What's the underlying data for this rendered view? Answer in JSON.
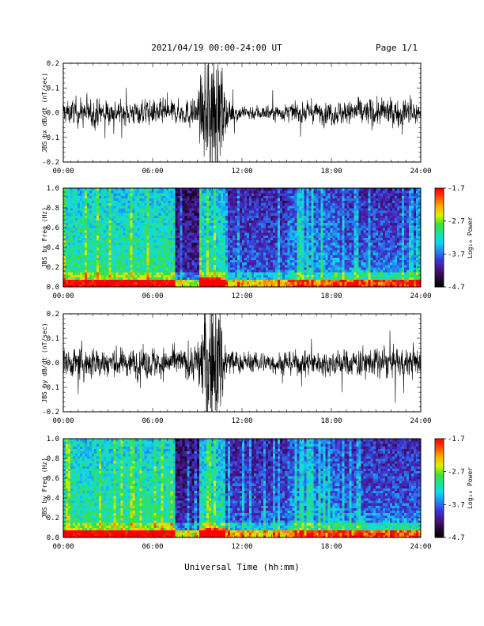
{
  "header": {
    "date_label": "2021/04/19  00:00-24:00 UT",
    "page_label": "Page 1/1"
  },
  "footer": {
    "xlabel": "Universal Time (hh:mm)"
  },
  "colors": {
    "trace": "#000000",
    "colormap": [
      "#000000",
      "#2a0a3c",
      "#4b1590",
      "#3a3ad8",
      "#1f8ef0",
      "#10d8f0",
      "#1fe09a",
      "#40e030",
      "#d8f000",
      "#ffb000",
      "#ff5000",
      "#ff0000"
    ]
  },
  "chart_data": [
    {
      "type": "line",
      "ylabel": "JBS bx dB/dt (nT/sec)",
      "x_ticks": [
        "00:00",
        "06:00",
        "12:00",
        "18:00",
        "24:00"
      ],
      "y_ticks": [
        "0.2",
        "0.1",
        "0.0",
        "-0.1",
        "-0.2"
      ],
      "xlim": [
        0,
        24
      ],
      "ylim": [
        -0.2,
        0.2
      ],
      "series": [
        {
          "amplitude_profile_hours": [
            0,
            2,
            4,
            6,
            8,
            9,
            9.5,
            10,
            10.5,
            11,
            12,
            15,
            18,
            21,
            24
          ],
          "amplitude_profile_values": [
            0.04,
            0.05,
            0.04,
            0.045,
            0.04,
            0.06,
            0.18,
            0.25,
            0.2,
            0.05,
            0.025,
            0.03,
            0.04,
            0.05,
            0.045
          ]
        }
      ]
    },
    {
      "type": "heatmap",
      "ylabel": "JBS bx Freq (Hz)",
      "x_ticks": [
        "00:00",
        "06:00",
        "12:00",
        "18:00",
        "24:00"
      ],
      "y_ticks": [
        "1.0",
        "0.8",
        "0.6",
        "0.4",
        "0.2",
        "0.0"
      ],
      "xlim": [
        0,
        24
      ],
      "ylim": [
        0,
        1.0
      ],
      "colorbar": {
        "label": "Log₁₀ Power",
        "ticks": [
          "-1.7",
          "-2.7",
          "-3.7",
          "-4.7"
        ],
        "range": [
          -4.7,
          -1.7
        ]
      }
    },
    {
      "type": "line",
      "ylabel": "JBS by dB/dt (nT/sec)",
      "x_ticks": [
        "00:00",
        "06:00",
        "12:00",
        "18:00",
        "24:00"
      ],
      "y_ticks": [
        "0.2",
        "0.1",
        "0.0",
        "-0.1",
        "-0.2"
      ],
      "xlim": [
        0,
        24
      ],
      "ylim": [
        -0.2,
        0.2
      ],
      "series": [
        {
          "amplitude_profile_hours": [
            0,
            2,
            4,
            6,
            8,
            9,
            9.5,
            10,
            10.5,
            11,
            12,
            15,
            18,
            21,
            24
          ],
          "amplitude_profile_values": [
            0.05,
            0.06,
            0.05,
            0.055,
            0.05,
            0.07,
            0.2,
            0.28,
            0.22,
            0.06,
            0.035,
            0.04,
            0.045,
            0.055,
            0.05
          ]
        }
      ]
    },
    {
      "type": "heatmap",
      "ylabel": "JBS by Freq (Hz)",
      "x_ticks": [
        "00:00",
        "06:00",
        "12:00",
        "18:00",
        "24:00"
      ],
      "y_ticks": [
        "1.0",
        "0.8",
        "0.6",
        "0.4",
        "0.2",
        "0.0"
      ],
      "xlim": [
        0,
        24
      ],
      "ylim": [
        0,
        1.0
      ],
      "colorbar": {
        "label": "Log₁₀ Power",
        "ticks": [
          "-1.7",
          "-2.7",
          "-3.7",
          "-4.7"
        ],
        "range": [
          -4.7,
          -1.7
        ]
      }
    }
  ]
}
